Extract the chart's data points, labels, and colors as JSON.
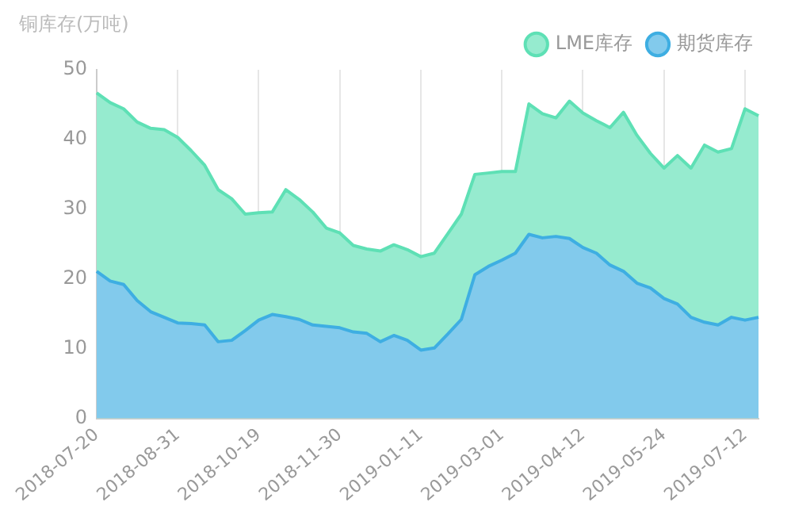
{
  "chart_data": {
    "type": "area",
    "ylabel": "铜库存(万吨)",
    "categories": [
      "2018-07-20",
      null,
      null,
      null,
      null,
      null,
      "2018-08-31",
      null,
      null,
      null,
      null,
      null,
      "2018-10-19",
      null,
      null,
      null,
      null,
      null,
      "2018-11-30",
      null,
      null,
      null,
      null,
      null,
      "2019-01-11",
      null,
      null,
      null,
      null,
      null,
      "2019-03-01",
      null,
      null,
      null,
      null,
      null,
      "2019-04-12",
      null,
      null,
      null,
      null,
      null,
      "2019-05-24",
      null,
      null,
      null,
      null,
      null,
      "2019-07-12",
      null
    ],
    "series": [
      {
        "name": "LME库存",
        "color": "#5ee0b5",
        "values": [
          46.7,
          45.3,
          44.4,
          42.5,
          41.6,
          41.4,
          40.3,
          38.4,
          36.3,
          32.8,
          31.5,
          29.3,
          29.5,
          29.6,
          32.8,
          31.4,
          29.6,
          27.3,
          26.6,
          24.8,
          24.3,
          24.0,
          24.9,
          24.2,
          23.2,
          23.7,
          26.5,
          29.3,
          35.0,
          35.2,
          35.4,
          35.4,
          45.1,
          43.7,
          43.1,
          45.5,
          43.8,
          42.7,
          41.7,
          43.9,
          40.6,
          38.0,
          35.9,
          37.7,
          35.9,
          39.2,
          38.2,
          38.7,
          44.4,
          43.4
        ]
      },
      {
        "name": "期货库存",
        "color": "#3eaee2",
        "values": [
          21.1,
          19.7,
          19.2,
          16.9,
          15.3,
          14.5,
          13.7,
          13.6,
          13.4,
          11.0,
          11.2,
          12.6,
          14.1,
          14.9,
          14.6,
          14.2,
          13.4,
          13.2,
          13.0,
          12.4,
          12.2,
          11.0,
          11.9,
          11.2,
          9.8,
          10.1,
          12.1,
          14.2,
          20.6,
          21.8,
          22.7,
          23.7,
          26.4,
          25.9,
          26.1,
          25.8,
          24.5,
          23.7,
          22.0,
          21.1,
          19.4,
          18.7,
          17.2,
          16.4,
          14.5,
          13.8,
          13.4,
          14.5,
          14.1,
          14.5
        ]
      }
    ],
    "ylim": [
      0,
      50
    ],
    "yticks": [
      0,
      10,
      20,
      30,
      40,
      50
    ],
    "grid": "x",
    "legend": "top right",
    "marker": "none"
  }
}
